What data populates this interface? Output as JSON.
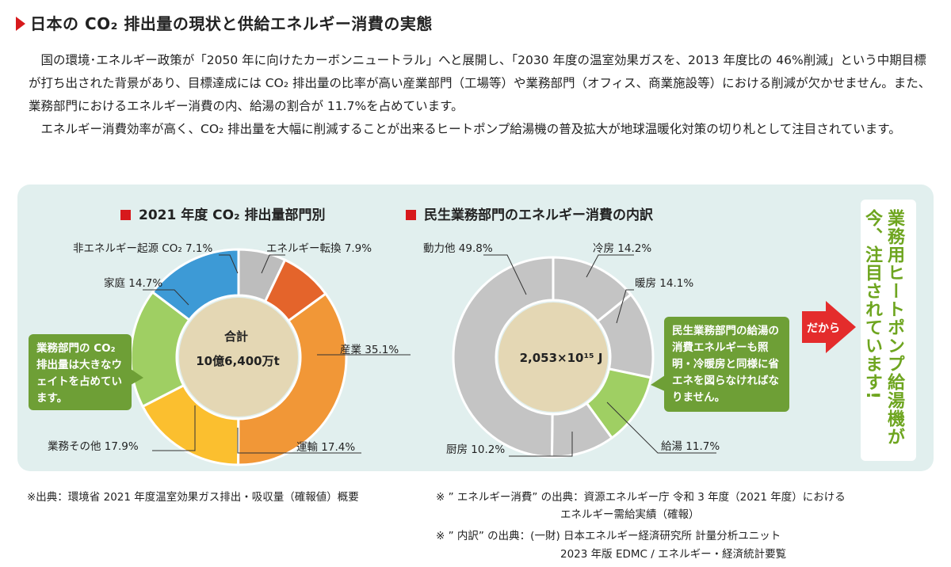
{
  "heading": "日本の CO₂ 排出量の現状と供給エネルギー消費の実態",
  "paragraphs": [
    "国の環境･エネルギー政策が「2050 年に向けたカーボンニュートラル」へと展開し、「2030 年度の温室効果ガスを、2013 年度比の 46%削減」という中期目標が打ち出された背景があり、目標達成には CO₂ 排出量の比率が高い産業部門（工場等）や業務部門（オフィス、商業施設等）における削減が欠かせません。また、業務部門におけるエネルギー消費の内、給湯の割合が 11.7%を占めています。",
    "エネルギー消費効率が高く、CO₂ 排出量を大幅に削減することが出来るヒートポンプ給湯機の普及拡大が地球温暖化対策の切り札として注目されています。"
  ],
  "chart_data": [
    {
      "type": "pie",
      "title": "2021 年度 CO₂ 排出量部門別",
      "center_label": "合計",
      "center_value": "10億6,400万t",
      "slices": [
        {
          "label": "非エネルギー起源 CO₂ 7.1%",
          "value": 7.1,
          "color": "#bdbdbd"
        },
        {
          "label": "エネルギー転換 7.9%",
          "value": 7.9,
          "color": "#e4642b"
        },
        {
          "label": "産業 35.1%",
          "value": 35.1,
          "color": "#f19737"
        },
        {
          "label": "運輸 17.4%",
          "value": 17.4,
          "color": "#fbbf2f"
        },
        {
          "label": "業務その他 17.9%",
          "value": 17.9,
          "color": "#9fcf63"
        },
        {
          "label": "家庭 14.7%",
          "value": 14.7,
          "color": "#3d9ad6"
        }
      ]
    },
    {
      "type": "pie",
      "title": "民生業務部門のエネルギー消費の内訳",
      "center_value": "2,053×10¹⁵ J",
      "slices": [
        {
          "label": "冷房 14.2%",
          "value": 14.2,
          "color": "#c4c4c4"
        },
        {
          "label": "暖房 14.1%",
          "value": 14.1,
          "color": "#c4c4c4"
        },
        {
          "label": "給湯 11.7%",
          "value": 11.7,
          "color": "#9fcf63"
        },
        {
          "label": "厨房 10.2%",
          "value": 10.2,
          "color": "#c4c4c4"
        },
        {
          "label": "動力他 49.8%",
          "value": 49.8,
          "color": "#c4c4c4"
        }
      ]
    }
  ],
  "notes": {
    "left": "業務部門の CO₂ 排出量は大きなウェイトを占めています。",
    "right": "民生業務部門の給湯の消費エネルギーも照明・冷暖房と同様に省エネを図らなければなりません。"
  },
  "arrow_label": "だから",
  "vertical_callout": [
    "業務用ヒートポンプ給湯機が",
    "今、注目されています!"
  ],
  "footnotes": {
    "left": "※出典：環境省 2021 年度温室効果ガス排出・吸収量（確報値）概要",
    "right1": "※ ” エネルギー消費” の出典：資源エネルギー庁 令和 3 年度（2021 年度）における",
    "right1b": "エネルギー需給実績（確報）",
    "right2": "※ ” 内訳” の出典：(一財) 日本エネルギー経済研究所 計量分析ユニット",
    "right2b": "2023 年版 EDMC / エネルギー・経済統計要覧"
  },
  "colors": {
    "accent_red": "#d7191c",
    "green": "#6e9f36",
    "panel_bg": "#e1efee",
    "center_disc": "#e4d7b4"
  }
}
